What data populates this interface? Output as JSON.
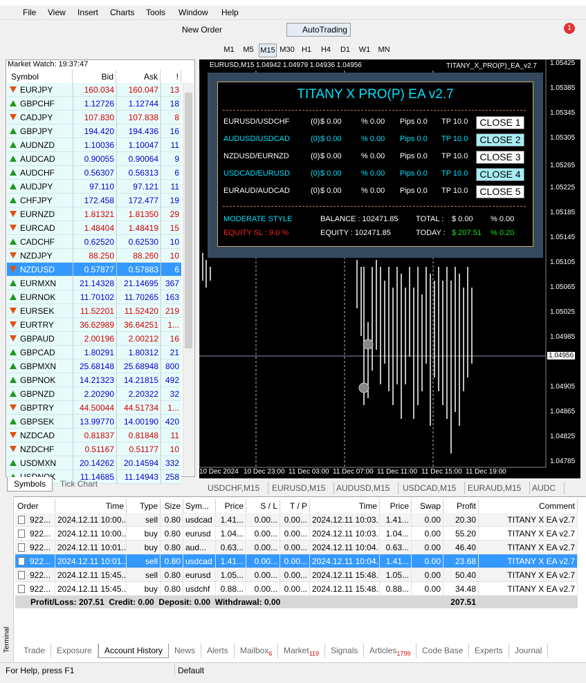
{
  "menu": [
    "File",
    "View",
    "Insert",
    "Charts",
    "Tools",
    "Window",
    "Help"
  ],
  "toolbar": {
    "new_order": "New Order",
    "auto_trading": "AutoTrading",
    "notifications": "1",
    "timeframes": [
      "M1",
      "M5",
      "M15",
      "M30",
      "H1",
      "H4",
      "D1",
      "W1",
      "MN"
    ]
  },
  "market_watch": {
    "title": "Market Watch: 19:37:47",
    "headers": [
      "Symbol",
      "Bid",
      "Ask",
      "!"
    ],
    "rows": [
      {
        "symbol": "EURJPY",
        "bid": "160.034",
        "ask": "160.047",
        "spread": "13",
        "dir": "down"
      },
      {
        "symbol": "GBPCHF",
        "bid": "1.12726",
        "ask": "1.12744",
        "spread": "18",
        "dir": "up"
      },
      {
        "symbol": "CADJPY",
        "bid": "107.830",
        "ask": "107.838",
        "spread": "8",
        "dir": "down"
      },
      {
        "symbol": "GBPJPY",
        "bid": "194.420",
        "ask": "194.436",
        "spread": "16",
        "dir": "up"
      },
      {
        "symbol": "AUDNZD",
        "bid": "1.10036",
        "ask": "1.10047",
        "spread": "11",
        "dir": "up"
      },
      {
        "symbol": "AUDCAD",
        "bid": "0.90055",
        "ask": "0.90064",
        "spread": "9",
        "dir": "up"
      },
      {
        "symbol": "AUDCHF",
        "bid": "0.56307",
        "ask": "0.56313",
        "spread": "6",
        "dir": "up"
      },
      {
        "symbol": "AUDJPY",
        "bid": "97.110",
        "ask": "97.121",
        "spread": "11",
        "dir": "up"
      },
      {
        "symbol": "CHFJPY",
        "bid": "172.458",
        "ask": "172.477",
        "spread": "19",
        "dir": "up"
      },
      {
        "symbol": "EURNZD",
        "bid": "1.81321",
        "ask": "1.81350",
        "spread": "29",
        "dir": "down"
      },
      {
        "symbol": "EURCAD",
        "bid": "1.48404",
        "ask": "1.48419",
        "spread": "15",
        "dir": "down"
      },
      {
        "symbol": "CADCHF",
        "bid": "0.62520",
        "ask": "0.62530",
        "spread": "10",
        "dir": "up"
      },
      {
        "symbol": "NZDJPY",
        "bid": "88.250",
        "ask": "88.260",
        "spread": "10",
        "dir": "down"
      },
      {
        "symbol": "NZDUSD",
        "bid": "0.57877",
        "ask": "0.57883",
        "spread": "6",
        "dir": "down",
        "selected": true
      },
      {
        "symbol": "EURMXN",
        "bid": "21.14328",
        "ask": "21.14695",
        "spread": "367",
        "dir": "up"
      },
      {
        "symbol": "EURNOK",
        "bid": "11.70102",
        "ask": "11.70265",
        "spread": "163",
        "dir": "up"
      },
      {
        "symbol": "EURSEK",
        "bid": "11.52201",
        "ask": "11.52420",
        "spread": "219",
        "dir": "down"
      },
      {
        "symbol": "EURTRY",
        "bid": "36.62989",
        "ask": "36.64251",
        "spread": "1...",
        "dir": "down"
      },
      {
        "symbol": "GBPAUD",
        "bid": "2.00196",
        "ask": "2.00212",
        "spread": "16",
        "dir": "down"
      },
      {
        "symbol": "GBPCAD",
        "bid": "1.80291",
        "ask": "1.80312",
        "spread": "21",
        "dir": "up"
      },
      {
        "symbol": "GBPMXN",
        "bid": "25.68148",
        "ask": "25.68948",
        "spread": "800",
        "dir": "up"
      },
      {
        "symbol": "GBPNOK",
        "bid": "14.21323",
        "ask": "14.21815",
        "spread": "492",
        "dir": "up"
      },
      {
        "symbol": "GBPNZD",
        "bid": "2.20290",
        "ask": "2.20322",
        "spread": "32",
        "dir": "up"
      },
      {
        "symbol": "GBPTRY",
        "bid": "44.50044",
        "ask": "44.51734",
        "spread": "1...",
        "dir": "down"
      },
      {
        "symbol": "GBPSEK",
        "bid": "13.99770",
        "ask": "14.00190",
        "spread": "420",
        "dir": "up"
      },
      {
        "symbol": "NZDCAD",
        "bid": "0.81837",
        "ask": "0.81848",
        "spread": "11",
        "dir": "down"
      },
      {
        "symbol": "NZDCHF",
        "bid": "0.51167",
        "ask": "0.51177",
        "spread": "10",
        "dir": "down"
      },
      {
        "symbol": "USDMXN",
        "bid": "20.14262",
        "ask": "20.14594",
        "spread": "332",
        "dir": "up"
      },
      {
        "symbol": "USDNOK",
        "bid": "11.14685",
        "ask": "11.14943",
        "spread": "258",
        "dir": "up"
      }
    ],
    "tabs": [
      "Symbols",
      "Tick Chart"
    ]
  },
  "chart": {
    "symbol": "EURUSD,M15",
    "ohlc": "1.04942 1.04979 1.04936 1.04956",
    "ea_name": "TITANY_X_PRO(P)_EA_v2.7",
    "price_labels": [
      "1.05425",
      "1.05385",
      "1.05345",
      "1.05305",
      "1.05265",
      "1.05225",
      "1.05185",
      "1.05145",
      "1.05105",
      "1.05065",
      "1.05025",
      "1.04985",
      "1.04905",
      "1.04865",
      "1.04825",
      "1.04785"
    ],
    "current_price": "1.04956",
    "time_labels": [
      "10 Dec 2024",
      "10 Dec 23:00",
      "11 Dec 03:00",
      "11 Dec 07:00",
      "11 Dec 11:00",
      "11 Dec 15:00",
      "11 Dec 19:00"
    ],
    "tabs": [
      "USDCHF,M15",
      "EURUSD,M15",
      "AUDUSD,M15",
      "USDCAD,M15",
      "EURAUD,M15",
      "AUDC"
    ]
  },
  "panel": {
    "title": "TITANY X PRO(P) EA v2.7",
    "rows": [
      {
        "pair": "EURUSD/USDCHF",
        "count": "(0)",
        "usd": "$ 0.00",
        "pct": "% 0.00",
        "pips": "Pips 0.0",
        "tp": "TP 10.0",
        "button": "CLOSE 1",
        "highlight": false
      },
      {
        "pair": "AUDUSD/USDCAD",
        "count": "(0)",
        "usd": "$ 0.00",
        "pct": "% 0.00",
        "pips": "Pips 0.0",
        "tp": "TP 10.0",
        "button": "CLOSE 2",
        "highlight": true
      },
      {
        "pair": "NZDUSD/EURNZD",
        "count": "(0)",
        "usd": "$ 0.00",
        "pct": "% 0.00",
        "pips": "Pips 0.0",
        "tp": "TP 10.0",
        "button": "CLOSE 3",
        "highlight": false
      },
      {
        "pair": "USDCAD/EURUSD",
        "count": "(0)",
        "usd": "$ 0.00",
        "pct": "% 0.00",
        "pips": "Pips 0.0",
        "tp": "TP 10.0",
        "button": "CLOSE 4",
        "highlight": true
      },
      {
        "pair": "EURAUD/AUDCAD",
        "count": "(0)",
        "usd": "$ 0.00",
        "pct": "% 0.00",
        "pips": "Pips 0.0",
        "tp": "TP 10.0",
        "button": "CLOSE 5",
        "highlight": false
      }
    ],
    "style": "MODERATE STYLE",
    "equity_sl": "EQUITY SL : 9.0 %",
    "balance": "BALANCE : 102471.85",
    "equity": "EQUITY : 102471.85",
    "total_label": "TOTAL :",
    "total_usd": "$ 0.00",
    "total_pct": "% 0.00",
    "today_label": "TODAY :",
    "today_usd": "$ 207.51",
    "today_pct": "% 0.20"
  },
  "terminal": {
    "label": "Terminal",
    "headers": [
      "Order",
      "Time",
      "Type",
      "Size",
      "Sym...",
      "Price",
      "S / L",
      "T / P",
      "Time",
      "Price",
      "Swap",
      "Profit",
      "Comment"
    ],
    "rows": [
      [
        "922...",
        "2024.12.11 10:00...",
        "sell",
        "0.80",
        "usdcad",
        "1.41...",
        "0.00...",
        "0.00...",
        "2024.12.11 10:03...",
        "1.41...",
        "0.00",
        "20.30",
        "TITANY X EA v2.7"
      ],
      [
        "922...",
        "2024.12.11 10:00...",
        "buy",
        "0.80",
        "eurusd",
        "1.04...",
        "0.00...",
        "0.00...",
        "2024.12.11 10:03...",
        "1.04...",
        "0.00",
        "55.20",
        "TITANY X EA v2.7"
      ],
      [
        "922...",
        "2024.12.11 10:01...",
        "buy",
        "0.80",
        "aud...",
        "0.63...",
        "0.00...",
        "0.00...",
        "2024.12.11 10:04...",
        "0.63...",
        "0.00",
        "46.40",
        "TITANY X EA v2.7"
      ],
      [
        "922...",
        "2024.12.11 10:01...",
        "sell",
        "0.80",
        "usdcad",
        "1.41...",
        "0.00...",
        "0.00...",
        "2024.12.11 10:04...",
        "1.41...",
        "0.00",
        "23.68",
        "TITANY X EA v2.7"
      ],
      [
        "922...",
        "2024.12.11 15:45...",
        "sell",
        "0.80",
        "eurusd",
        "1.05...",
        "0.00...",
        "0.00...",
        "2024.12.11 15:48...",
        "1.05...",
        "0.00",
        "50.40",
        "TITANY X EA v2.7"
      ],
      [
        "922...",
        "2024.12.11 15:45...",
        "buy",
        "0.80",
        "usdchf",
        "0.88...",
        "0.00...",
        "0.00...",
        "2024.12.11 15:48...",
        "0.88...",
        "0.00",
        "34.48",
        "TITANY X EA v2.7"
      ]
    ],
    "selected_row": 3,
    "summary": "Profit/Loss: 207.51  Credit: 0.00  Deposit: 0.00  Withdrawal: 0.00",
    "summary_total": "207.51",
    "tabs": [
      {
        "label": "Trade"
      },
      {
        "label": "Exposure"
      },
      {
        "label": "Account History",
        "active": true
      },
      {
        "label": "News"
      },
      {
        "label": "Alerts"
      },
      {
        "label": "Mailbox",
        "badge": "6"
      },
      {
        "label": "Market",
        "badge": "119"
      },
      {
        "label": "Signals"
      },
      {
        "label": "Articles",
        "badge": "1799"
      },
      {
        "label": "Code Base"
      },
      {
        "label": "Experts"
      },
      {
        "label": "Journal"
      }
    ]
  },
  "status": {
    "help": "For Help, press F1",
    "profile": "Default"
  }
}
